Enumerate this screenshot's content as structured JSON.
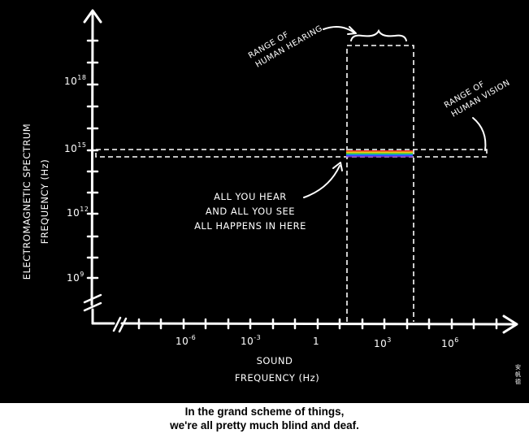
{
  "colors": {
    "background": "#000000",
    "ink": "#ffffff",
    "caption_background": "#ffffff",
    "caption_text": "#000000",
    "spectrum": [
      "#ff2a2a",
      "#ff9a1a",
      "#ffee22",
      "#22dd44",
      "#2288ff",
      "#3344ff",
      "#8833dd"
    ]
  },
  "y_axis": {
    "label_line1": "ELECTROMAGNETIC SPECTRUM",
    "label_line2": "FREQUENCY (Hz)",
    "ticks": [
      {
        "base": "10",
        "exp": "9"
      },
      {
        "base": "10",
        "exp": "12"
      },
      {
        "base": "10",
        "exp": "15"
      },
      {
        "base": "10",
        "exp": "18"
      }
    ]
  },
  "x_axis": {
    "label_line1": "SOUND",
    "label_line2": "FREQUENCY (Hz)",
    "ticks": [
      {
        "base": "10",
        "exp": "-6"
      },
      {
        "base": "10",
        "exp": "-3"
      },
      {
        "base": "1",
        "exp": ""
      },
      {
        "base": "10",
        "exp": "3"
      },
      {
        "base": "10",
        "exp": "6"
      }
    ]
  },
  "annotations": {
    "hearing_line1": "RANGE OF",
    "hearing_line2": "HUMAN HEARING",
    "vision_line1": "RANGE OF",
    "vision_line2": "HUMAN VISION",
    "center_line1": "ALL YOU HEAR",
    "center_line2": "AND ALL YOU SEE",
    "center_line3": "ALL HAPPENS IN HERE"
  },
  "signature": "安帆德",
  "caption": {
    "line1": "In the grand scheme of things,",
    "line2": "we're all pretty much blind and deaf."
  }
}
